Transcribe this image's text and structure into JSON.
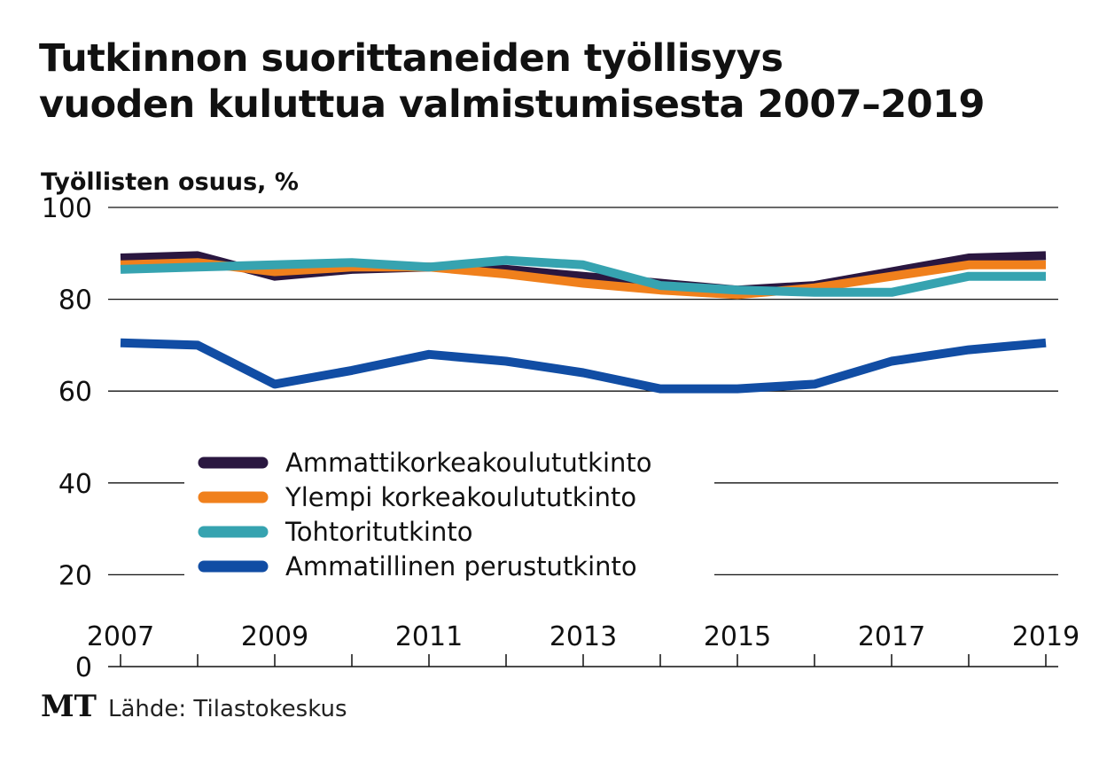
{
  "title_lines": [
    "Tutkinnon suorittaneiden työllisyys",
    "vuoden kuluttua valmistumisesta 2007–2019"
  ],
  "logo": "MT",
  "source": "Lähde: Tilastokeskus",
  "chart_data": {
    "type": "line",
    "ylabel": "Työllisten osuus, %",
    "ylim": [
      0,
      100
    ],
    "yticks": [
      0,
      20,
      40,
      60,
      80,
      100
    ],
    "x": [
      2007,
      2008,
      2009,
      2010,
      2011,
      2012,
      2013,
      2014,
      2015,
      2016,
      2017,
      2018,
      2019
    ],
    "xtick_labels": [
      "2007",
      "2009",
      "2011",
      "2013",
      "2015",
      "2017",
      "2019"
    ],
    "grid": true,
    "legend_position": "center-left",
    "series": [
      {
        "name": "Ammattikorkeakoulututkinto",
        "color": "#2a1740",
        "values": [
          89,
          89.5,
          85,
          86.5,
          87,
          86.5,
          85,
          83.5,
          82,
          83,
          86,
          89,
          89.5
        ]
      },
      {
        "name": "Ylempi korkeakoulututkinto",
        "color": "#f0801c",
        "values": [
          87.5,
          88,
          86,
          87,
          87,
          85.5,
          83.5,
          82,
          81,
          82.5,
          85,
          87.5,
          87.5
        ]
      },
      {
        "name": "Tohtoritutkinto",
        "color": "#36a3b0",
        "values": [
          86.5,
          87,
          87.5,
          88,
          87,
          88.5,
          87.5,
          83,
          82,
          81.5,
          81.5,
          85,
          85
        ]
      },
      {
        "name": "Ammatillinen perustutkinto",
        "color": "#114da4",
        "values": [
          70.5,
          70,
          61.5,
          64.5,
          68,
          66.5,
          64,
          60.5,
          60.5,
          61.5,
          66.5,
          69,
          70.5
        ]
      }
    ]
  }
}
